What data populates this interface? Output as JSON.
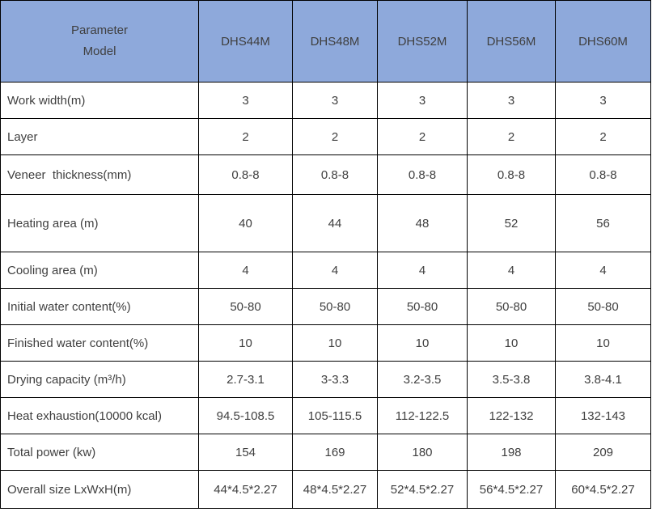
{
  "table": {
    "header": {
      "param_line1": "Parameter",
      "param_line2": "Model",
      "models": [
        "DHS44M",
        "DHS48M",
        "DHS52M",
        "DHS56M",
        "DHS60M"
      ]
    },
    "rows": [
      {
        "label": "Work width(m)",
        "values": [
          "3",
          "3",
          "3",
          "3",
          "3"
        ]
      },
      {
        "label": "Layer",
        "values": [
          "2",
          "2",
          "2",
          "2",
          "2"
        ]
      },
      {
        "label": "Veneer  thickness(mm)",
        "values": [
          "0.8-8",
          "0.8-8",
          "0.8-8",
          "0.8-8",
          "0.8-8"
        ]
      },
      {
        "label": "Heating area (m)",
        "values": [
          "40",
          "44",
          "48",
          "52",
          "56"
        ]
      },
      {
        "label": "Cooling area (m)",
        "values": [
          "4",
          "4",
          "4",
          "4",
          "4"
        ]
      },
      {
        "label": "Initial water content(%)",
        "values": [
          "50-80",
          "50-80",
          "50-80",
          "50-80",
          "50-80"
        ]
      },
      {
        "label": "Finished water content(%)",
        "values": [
          "10",
          "10",
          "10",
          "10",
          "10"
        ]
      },
      {
        "label": "Drying capacity (m³/h)",
        "values": [
          "2.7-3.1",
          "3-3.3",
          "3.2-3.5",
          "3.5-3.8",
          "3.8-4.1"
        ]
      },
      {
        "label": "Heat exhaustion(10000 kcal)",
        "values": [
          "94.5-108.5",
          "105-115.5",
          "112-122.5",
          "122-132",
          "132-143"
        ]
      },
      {
        "label": "Total power (kw)",
        "values": [
          "154",
          "169",
          "180",
          "198",
          "209"
        ]
      },
      {
        "label": "Overall size LxWxH(m)",
        "values": [
          "44*4.5*2.27",
          "48*4.5*2.27",
          "52*4.5*2.27",
          "56*4.5*2.27",
          "60*4.5*2.27"
        ]
      }
    ],
    "colors": {
      "header_bg": "#8ea9db",
      "body_bg": "#ffffff",
      "text": "#3f3f3f",
      "border": "#000000"
    }
  }
}
